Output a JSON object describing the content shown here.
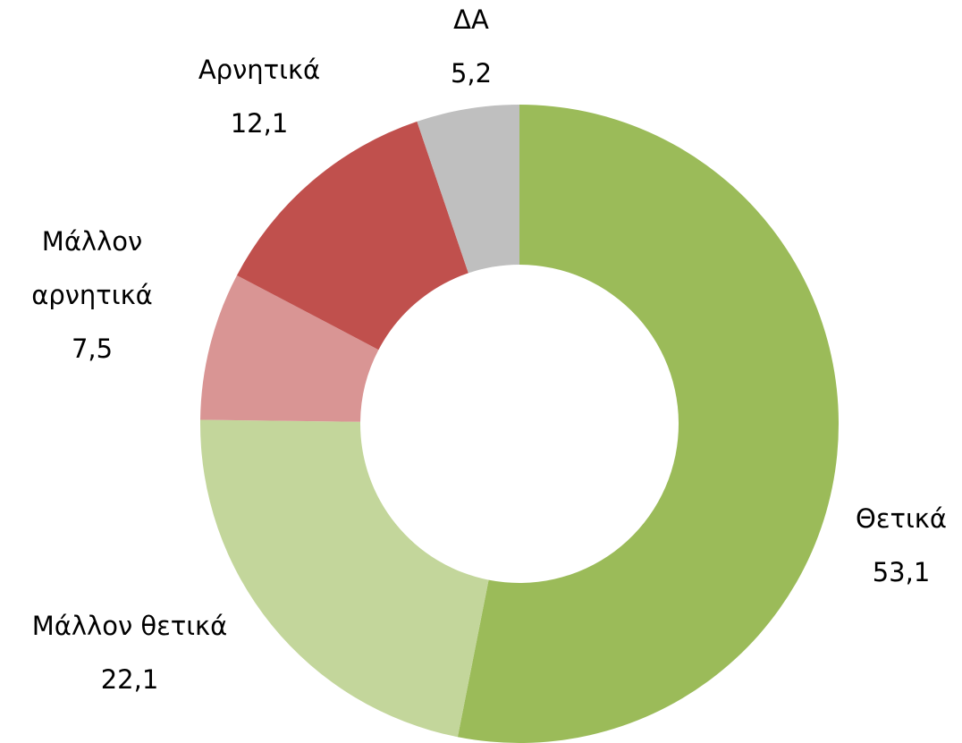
{
  "chart_data": {
    "type": "donut",
    "categories": [
      "Θετικά",
      "Μάλλον θετικά",
      "Μάλλον αρνητικά",
      "Αρνητικά",
      "ΔΑ"
    ],
    "values": [
      53.1,
      22.1,
      7.5,
      12.1,
      5.2
    ],
    "value_labels": [
      "53,1",
      "22,1",
      "7,5",
      "12,1",
      "5,2"
    ],
    "colors": [
      "#9bbb59",
      "#c3d69b",
      "#d99594",
      "#c0504d",
      "#bfbfbf"
    ]
  }
}
